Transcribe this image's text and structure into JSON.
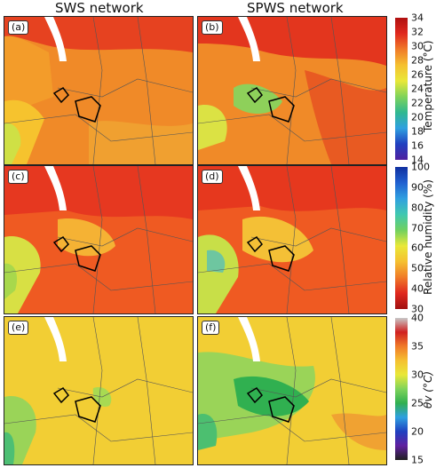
{
  "columns": {
    "left": "SWS network",
    "right": "SPWS network"
  },
  "panels": {
    "a": "(a)",
    "b": "(b)",
    "c": "(c)",
    "d": "(d)",
    "e": "(e)",
    "f": "(f)"
  },
  "colorbars": {
    "temperature": {
      "label": "Temperature (°C)",
      "ticks": [
        "34",
        "32",
        "30",
        "28",
        "26",
        "24",
        "22",
        "20",
        "18",
        "16",
        "14"
      ],
      "range": [
        14,
        34
      ]
    },
    "humidity": {
      "label": "Relative humidity (%)",
      "ticks": [
        "100",
        "90",
        "80",
        "70",
        "60",
        "50",
        "40",
        "30"
      ],
      "range": [
        30,
        100
      ]
    },
    "theta": {
      "label": "θv (°C)",
      "ticks": [
        "40",
        "35",
        "30",
        "25",
        "20",
        "15"
      ],
      "range": [
        15,
        40
      ]
    }
  },
  "colors": {
    "hot": "#e0281e",
    "warm": "#f07a28",
    "mild": "#f5c030",
    "yellow": "#e9e838",
    "green": "#7fd35a",
    "cool": "#2fa0e0",
    "sea": "#ffffff"
  }
}
